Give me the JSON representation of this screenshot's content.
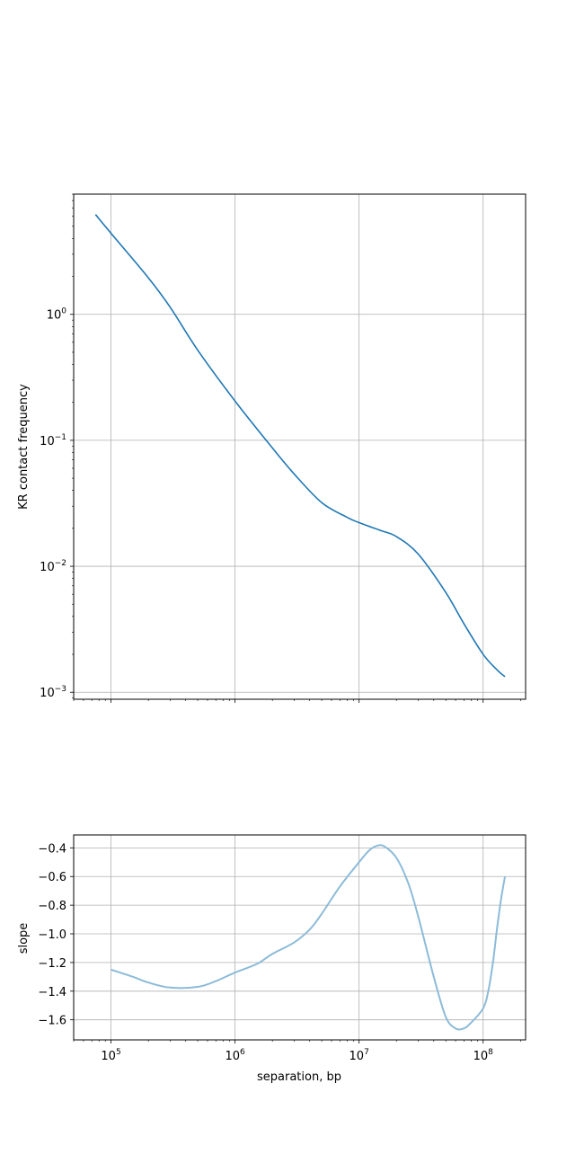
{
  "figure": {
    "background": "#ffffff",
    "grid_color": "#b0b0b0",
    "line_color_top": "#1f77b4",
    "line_color_bottom": "#8cbbd9"
  },
  "chart_data": [
    {
      "type": "line",
      "title": "",
      "xlabel": "",
      "ylabel": "KR contact frequency",
      "xscale": "log",
      "yscale": "log",
      "xlim": [
        50000,
        220000000
      ],
      "ylim": [
        0.00088,
        9.0
      ],
      "grid": true,
      "x_tick_labels_visible": false,
      "y_ticks": [
        {
          "value": 0.001,
          "base": "10",
          "exp": "−3"
        },
        {
          "value": 0.01,
          "base": "10",
          "exp": "−2"
        },
        {
          "value": 0.1,
          "base": "10",
          "exp": "−1"
        },
        {
          "value": 1,
          "base": "10",
          "exp": "0"
        }
      ],
      "series": [
        {
          "x": [
            75000,
            100000,
            200000,
            300000,
            500000,
            1000000,
            2000000,
            3000000,
            5000000,
            8000000,
            10000000,
            15000000,
            20000000,
            30000000,
            50000000,
            70000000,
            100000000,
            130000000,
            150000000
          ],
          "y": [
            6.2,
            4.4,
            1.95,
            1.14,
            0.52,
            0.205,
            0.087,
            0.054,
            0.032,
            0.0245,
            0.0222,
            0.0192,
            0.0172,
            0.0125,
            0.0062,
            0.0035,
            0.002,
            0.0015,
            0.00133
          ]
        }
      ]
    },
    {
      "type": "line",
      "title": "",
      "xlabel": "separation, bp",
      "ylabel": "slope",
      "xscale": "log",
      "xlim": [
        50000,
        220000000
      ],
      "ylim": [
        -1.74,
        -0.31
      ],
      "grid": true,
      "x_ticks": [
        {
          "value": 100000,
          "base": "10",
          "exp": "5"
        },
        {
          "value": 1000000,
          "base": "10",
          "exp": "6"
        },
        {
          "value": 10000000,
          "base": "10",
          "exp": "7"
        },
        {
          "value": 100000000,
          "base": "10",
          "exp": "8"
        }
      ],
      "y_ticks": [
        -1.6,
        -1.4,
        -1.2,
        -1.0,
        -0.8,
        -0.6,
        -0.4
      ],
      "y_tick_labels": [
        "−1.6",
        "−1.4",
        "−1.2",
        "−1.0",
        "−0.8",
        "−0.6",
        "−0.4"
      ],
      "series": [
        {
          "x": [
            100000,
            150000,
            200000,
            300000,
            500000,
            700000,
            1000000,
            1500000,
            2000000,
            3000000,
            4000000,
            5000000,
            7000000,
            10000000,
            12000000,
            14000000,
            16000000,
            20000000,
            25000000,
            30000000,
            40000000,
            50000000,
            60000000,
            70000000,
            80000000,
            100000000,
            110000000,
            120000000,
            130000000,
            140000000,
            150000000
          ],
          "y": [
            -1.25,
            -1.3,
            -1.34,
            -1.375,
            -1.37,
            -1.33,
            -1.27,
            -1.21,
            -1.14,
            -1.06,
            -0.97,
            -0.86,
            -0.67,
            -0.5,
            -0.42,
            -0.385,
            -0.39,
            -0.47,
            -0.65,
            -0.88,
            -1.3,
            -1.58,
            -1.66,
            -1.66,
            -1.62,
            -1.52,
            -1.4,
            -1.2,
            -0.95,
            -0.75,
            -0.6
          ]
        }
      ]
    }
  ]
}
